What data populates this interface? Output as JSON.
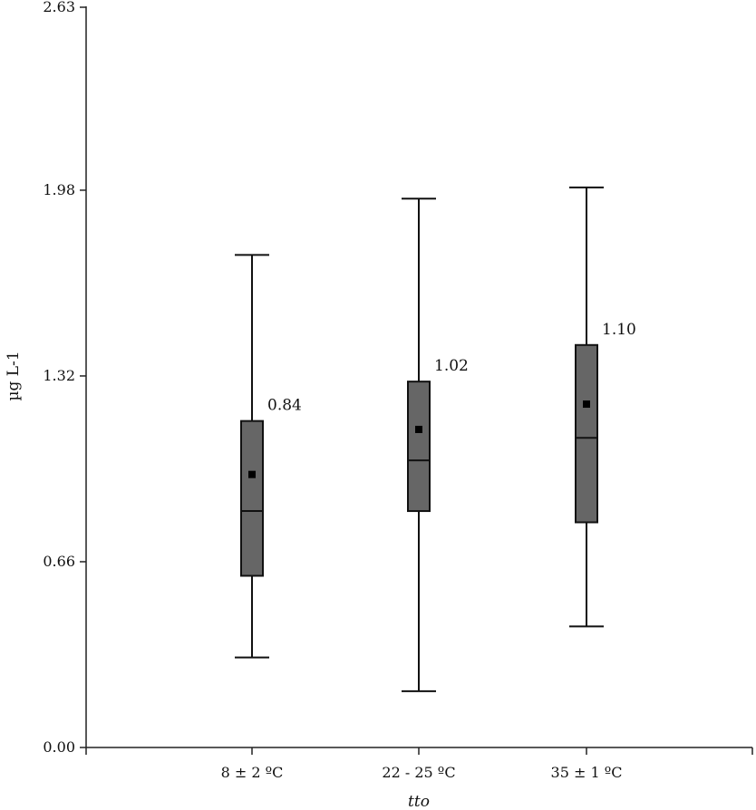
{
  "chart_data": {
    "type": "box",
    "ylabel": "µg L-1",
    "xlabel": "tto",
    "ylim": [
      0,
      2.63
    ],
    "yticks": [
      "0.00",
      "0.66",
      "1.32",
      "1.98",
      "2.63"
    ],
    "ytick_values": [
      0,
      0.66,
      1.32,
      1.98,
      2.63
    ],
    "categories": [
      "8 ± 2 ºC",
      "22 - 25 ºC",
      "35 ± 1 ºC"
    ],
    "boxes": [
      {
        "min": 0.32,
        "q1": 0.61,
        "median": 0.84,
        "q3": 1.16,
        "max": 1.75,
        "mean": 0.97,
        "annotation": "0.84"
      },
      {
        "min": 0.2,
        "q1": 0.84,
        "median": 1.02,
        "q3": 1.3,
        "max": 1.95,
        "mean": 1.13,
        "annotation": "1.02"
      },
      {
        "min": 0.43,
        "q1": 0.8,
        "median": 1.1,
        "q3": 1.43,
        "max": 1.99,
        "mean": 1.22,
        "annotation": "1.10"
      }
    ],
    "grid": false,
    "legend": "none"
  }
}
